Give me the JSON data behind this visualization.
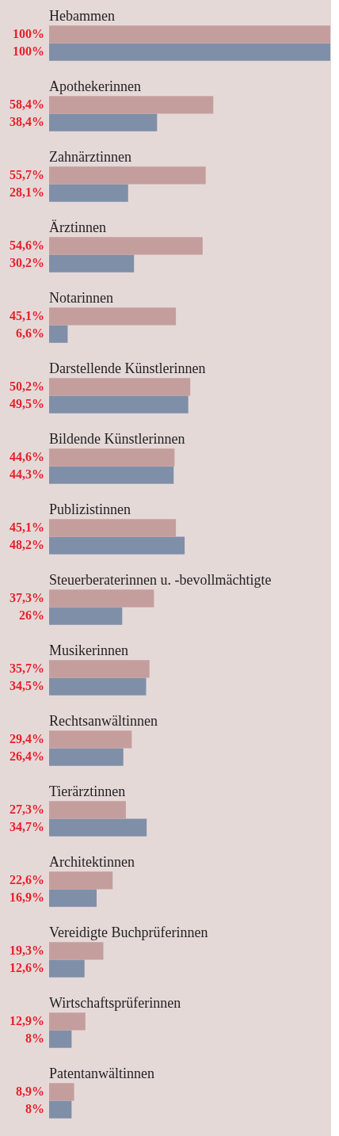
{
  "chart_data": {
    "type": "bar",
    "orientation": "horizontal",
    "xlim": [
      0,
      100
    ],
    "categories": [
      "Hebammen",
      "Apothekerinnen",
      "Zahnärztinnen",
      "Ärztinnen",
      "Notarinnen",
      "Darstellende Künstlerinnen",
      "Bildende Künstlerinnen",
      "Publizistinnen",
      "Steuerberaterinnen u. -bevollmächtigte",
      "Musikerinnen",
      "Rechtsanwältinnen",
      "Tierärztinnen",
      "Architektinnen",
      "Vereidigte Buchprüferinnen",
      "Wirtschaftsprüferinnen",
      "Patentanwältinnen"
    ],
    "series": [
      {
        "color": "#c49e9d",
        "values": [
          100,
          58.4,
          55.7,
          54.6,
          45.1,
          50.2,
          44.6,
          45.1,
          37.3,
          35.7,
          29.4,
          27.3,
          22.6,
          19.3,
          12.9,
          8.9
        ],
        "value_labels": [
          "100%",
          "58,4%",
          "55,7%",
          "54,6%",
          "45,1%",
          "50,2%",
          "44,6%",
          "45,1%",
          "37,3%",
          "35,7%",
          "29,4%",
          "27,3%",
          "22,6%",
          "19,3%",
          "12,9%",
          "8,9%"
        ]
      },
      {
        "color": "#7f8fa8",
        "values": [
          100,
          38.4,
          28.1,
          30.2,
          6.6,
          49.5,
          44.3,
          48.2,
          26,
          34.5,
          26.4,
          34.7,
          16.9,
          12.6,
          8,
          8
        ],
        "value_labels": [
          "100%",
          "38,4%",
          "28,1%",
          "30,2%",
          "6,6%",
          "49,5%",
          "44,3%",
          "48,2%",
          "26%",
          "34,5%",
          "26,4%",
          "34,7%",
          "16,9%",
          "12,6%",
          "8%",
          "8%"
        ]
      }
    ]
  }
}
